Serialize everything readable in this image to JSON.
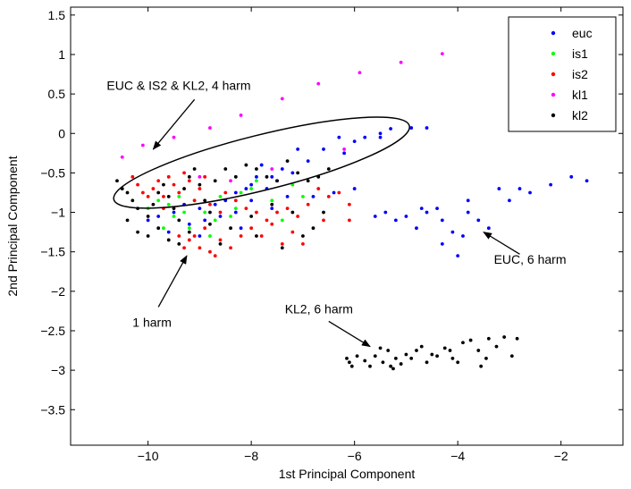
{
  "chart_data": {
    "type": "scatter",
    "title": "",
    "xlabel": "1st Principal Component",
    "ylabel": "2nd Principal Component",
    "xlim": [
      -11.5,
      -0.8
    ],
    "ylim": [
      -3.95,
      1.6
    ],
    "xticks": [
      -10,
      -8,
      -6,
      -4,
      -2
    ],
    "yticks": [
      1.5,
      1,
      0.5,
      0,
      -0.5,
      -1,
      -1.5,
      -2,
      -2.5,
      -3,
      -3.5
    ],
    "grid": false,
    "legend_position": "top-right",
    "series": [
      {
        "name": "euc",
        "color": "#0000ff",
        "points": [
          [
            -4.9,
            0.07
          ],
          [
            -4.6,
            0.07
          ],
          [
            -5.3,
            0.06
          ],
          [
            -5.5,
            0.0
          ],
          [
            -5.5,
            -0.05
          ],
          [
            -5.8,
            -0.05
          ],
          [
            -6.0,
            -0.1
          ],
          [
            -6.3,
            -0.05
          ],
          [
            -6.2,
            -0.25
          ],
          [
            -6.6,
            -0.2
          ],
          [
            -6.9,
            -0.35
          ],
          [
            -7.1,
            -0.2
          ],
          [
            -7.2,
            -0.5
          ],
          [
            -7.4,
            -0.45
          ],
          [
            -7.5,
            -0.6
          ],
          [
            -7.6,
            -0.55
          ],
          [
            -7.8,
            -0.4
          ],
          [
            -7.9,
            -0.55
          ],
          [
            -8.0,
            -0.65
          ],
          [
            -8.1,
            -0.7
          ],
          [
            -8.3,
            -0.75
          ],
          [
            -8.5,
            -0.85
          ],
          [
            -8.7,
            -0.9
          ],
          [
            -9.0,
            -0.95
          ],
          [
            -9.3,
            -0.9
          ],
          [
            -7.7,
            -0.7
          ],
          [
            -8.0,
            -0.85
          ],
          [
            -8.3,
            -1.0
          ],
          [
            -8.6,
            -1.05
          ],
          [
            -8.9,
            -1.1
          ],
          [
            -9.2,
            -1.15
          ],
          [
            -9.5,
            -1.0
          ],
          [
            -9.8,
            -1.05
          ],
          [
            -10.0,
            -1.1
          ],
          [
            -9.6,
            -1.25
          ],
          [
            -9.0,
            -1.3
          ],
          [
            -8.2,
            -1.2
          ],
          [
            -7.6,
            -0.95
          ],
          [
            -7.3,
            -0.8
          ],
          [
            -6.8,
            -0.8
          ],
          [
            -6.4,
            -0.75
          ],
          [
            -6.0,
            -0.7
          ],
          [
            -5.6,
            -1.05
          ],
          [
            -5.4,
            -1.0
          ],
          [
            -5.2,
            -1.1
          ],
          [
            -5.0,
            -1.05
          ],
          [
            -4.8,
            -1.2
          ],
          [
            -4.6,
            -1.0
          ],
          [
            -4.4,
            -0.95
          ],
          [
            -4.3,
            -1.1
          ],
          [
            -4.1,
            -1.25
          ],
          [
            -4.0,
            -1.55
          ],
          [
            -3.8,
            -0.85
          ],
          [
            -3.6,
            -1.1
          ],
          [
            -3.4,
            -1.2
          ],
          [
            -3.2,
            -0.7
          ],
          [
            -3.0,
            -0.85
          ],
          [
            -2.8,
            -0.7
          ],
          [
            -2.6,
            -0.75
          ],
          [
            -2.2,
            -0.65
          ],
          [
            -1.8,
            -0.55
          ],
          [
            -1.5,
            -0.6
          ],
          [
            -4.3,
            -1.4
          ],
          [
            -3.8,
            -1.0
          ],
          [
            -3.9,
            -1.3
          ],
          [
            -4.7,
            -0.95
          ]
        ]
      },
      {
        "name": "is1",
        "color": "#00ff00",
        "points": [
          [
            -10.0,
            -0.95
          ],
          [
            -9.8,
            -0.85
          ],
          [
            -9.6,
            -0.9
          ],
          [
            -9.5,
            -1.05
          ],
          [
            -9.3,
            -1.0
          ],
          [
            -9.2,
            -1.2
          ],
          [
            -9.1,
            -0.85
          ],
          [
            -8.9,
            -1.0
          ],
          [
            -8.7,
            -1.1
          ],
          [
            -8.6,
            -0.8
          ],
          [
            -8.4,
            -1.05
          ],
          [
            -8.2,
            -0.75
          ],
          [
            -8.0,
            -0.7
          ],
          [
            -7.9,
            -0.6
          ],
          [
            -7.6,
            -0.85
          ],
          [
            -7.4,
            -1.1
          ],
          [
            -7.2,
            -0.65
          ],
          [
            -9.7,
            -1.2
          ],
          [
            -8.8,
            -1.3
          ],
          [
            -8.3,
            -0.95
          ],
          [
            -7.0,
            -0.8
          ],
          [
            -9.4,
            -0.8
          ]
        ]
      },
      {
        "name": "is2",
        "color": "#ff0000",
        "points": [
          [
            -10.3,
            -0.55
          ],
          [
            -10.2,
            -0.65
          ],
          [
            -10.1,
            -0.75
          ],
          [
            -10.0,
            -0.8
          ],
          [
            -9.9,
            -0.7
          ],
          [
            -9.8,
            -0.6
          ],
          [
            -9.7,
            -0.8
          ],
          [
            -9.6,
            -0.55
          ],
          [
            -9.5,
            -0.65
          ],
          [
            -9.4,
            -0.75
          ],
          [
            -9.3,
            -0.5
          ],
          [
            -9.2,
            -0.6
          ],
          [
            -9.1,
            -0.85
          ],
          [
            -9.0,
            -0.7
          ],
          [
            -8.9,
            -0.55
          ],
          [
            -8.8,
            -0.9
          ],
          [
            -8.6,
            -1.0
          ],
          [
            -8.5,
            -0.75
          ],
          [
            -8.3,
            -0.85
          ],
          [
            -8.1,
            -0.95
          ],
          [
            -7.9,
            -1.0
          ],
          [
            -7.7,
            -1.1
          ],
          [
            -7.5,
            -1.0
          ],
          [
            -7.3,
            -0.95
          ],
          [
            -7.1,
            -1.05
          ],
          [
            -6.9,
            -0.9
          ],
          [
            -6.7,
            -0.7
          ],
          [
            -6.5,
            -0.8
          ],
          [
            -6.3,
            -0.75
          ],
          [
            -6.1,
            -1.1
          ],
          [
            -9.4,
            -1.3
          ],
          [
            -9.3,
            -1.45
          ],
          [
            -9.2,
            -1.35
          ],
          [
            -9.0,
            -1.45
          ],
          [
            -8.8,
            -1.5
          ],
          [
            -8.6,
            -1.35
          ],
          [
            -8.4,
            -1.45
          ],
          [
            -8.2,
            -1.3
          ],
          [
            -8.0,
            -1.2
          ],
          [
            -7.8,
            -1.3
          ],
          [
            -7.6,
            -1.15
          ],
          [
            -7.4,
            -1.4
          ],
          [
            -7.2,
            -1.25
          ],
          [
            -8.9,
            -1.2
          ],
          [
            -9.7,
            -0.95
          ],
          [
            -6.1,
            -0.9
          ],
          [
            -6.6,
            -1.1
          ],
          [
            -7.0,
            -1.4
          ],
          [
            -8.7,
            -1.55
          ],
          [
            -9.1,
            -1.3
          ]
        ]
      },
      {
        "name": "kl1",
        "color": "#ff00ff",
        "points": [
          [
            -4.3,
            1.01
          ],
          [
            -5.1,
            0.9
          ],
          [
            -5.9,
            0.77
          ],
          [
            -6.7,
            0.63
          ],
          [
            -7.4,
            0.44
          ],
          [
            -8.2,
            0.23
          ],
          [
            -8.8,
            0.07
          ],
          [
            -9.5,
            -0.05
          ],
          [
            -10.1,
            -0.15
          ],
          [
            -10.5,
            -0.3
          ],
          [
            -6.2,
            -0.2
          ],
          [
            -7.6,
            -0.45
          ],
          [
            -8.4,
            -0.6
          ],
          [
            -9.0,
            -0.55
          ]
        ]
      },
      {
        "name": "kl2",
        "color": "#000000",
        "points": [
          [
            -10.6,
            -0.6
          ],
          [
            -10.5,
            -0.7
          ],
          [
            -10.4,
            -0.75
          ],
          [
            -10.3,
            -0.85
          ],
          [
            -10.2,
            -0.95
          ],
          [
            -10.0,
            -1.05
          ],
          [
            -9.9,
            -0.9
          ],
          [
            -9.8,
            -0.75
          ],
          [
            -9.7,
            -0.65
          ],
          [
            -9.6,
            -0.8
          ],
          [
            -9.5,
            -0.95
          ],
          [
            -9.4,
            -1.1
          ],
          [
            -9.3,
            -0.7
          ],
          [
            -9.2,
            -0.55
          ],
          [
            -9.1,
            -0.45
          ],
          [
            -9.0,
            -0.65
          ],
          [
            -8.9,
            -0.85
          ],
          [
            -8.8,
            -1.0
          ],
          [
            -8.7,
            -0.6
          ],
          [
            -8.5,
            -0.45
          ],
          [
            -8.3,
            -0.55
          ],
          [
            -8.1,
            -0.4
          ],
          [
            -7.9,
            -0.45
          ],
          [
            -7.7,
            -0.55
          ],
          [
            -7.5,
            -0.6
          ],
          [
            -7.3,
            -0.35
          ],
          [
            -7.1,
            -0.5
          ],
          [
            -6.9,
            -0.6
          ],
          [
            -6.7,
            -0.55
          ],
          [
            -6.5,
            -0.45
          ],
          [
            -10.4,
            -1.1
          ],
          [
            -10.2,
            -1.25
          ],
          [
            -10.0,
            -1.3
          ],
          [
            -9.8,
            -1.2
          ],
          [
            -9.6,
            -1.35
          ],
          [
            -9.4,
            -1.4
          ],
          [
            -9.2,
            -1.25
          ],
          [
            -8.8,
            -1.15
          ],
          [
            -8.4,
            -1.2
          ],
          [
            -8.0,
            -1.05
          ],
          [
            -7.6,
            -0.9
          ],
          [
            -7.2,
            -1.0
          ],
          [
            -7.0,
            -1.3
          ],
          [
            -6.8,
            -1.2
          ],
          [
            -6.6,
            -1.0
          ],
          [
            -7.4,
            -1.45
          ],
          [
            -7.9,
            -1.3
          ],
          [
            -8.6,
            -1.4
          ],
          [
            -6.15,
            -2.85
          ],
          [
            -6.1,
            -2.9
          ],
          [
            -5.95,
            -2.82
          ],
          [
            -5.8,
            -2.88
          ],
          [
            -5.7,
            -2.95
          ],
          [
            -5.6,
            -2.82
          ],
          [
            -5.5,
            -2.72
          ],
          [
            -5.45,
            -2.9
          ],
          [
            -5.35,
            -2.75
          ],
          [
            -5.3,
            -2.95
          ],
          [
            -5.2,
            -2.85
          ],
          [
            -5.1,
            -2.92
          ],
          [
            -5.0,
            -2.8
          ],
          [
            -4.9,
            -2.85
          ],
          [
            -4.8,
            -2.75
          ],
          [
            -4.7,
            -2.7
          ],
          [
            -4.6,
            -2.9
          ],
          [
            -4.5,
            -2.8
          ],
          [
            -4.4,
            -2.82
          ],
          [
            -4.25,
            -2.72
          ],
          [
            -4.15,
            -2.75
          ],
          [
            -4.1,
            -2.85
          ],
          [
            -4.0,
            -2.9
          ],
          [
            -3.9,
            -2.65
          ],
          [
            -3.75,
            -2.62
          ],
          [
            -3.6,
            -2.75
          ],
          [
            -3.45,
            -2.85
          ],
          [
            -3.4,
            -2.6
          ],
          [
            -3.25,
            -2.7
          ],
          [
            -3.1,
            -2.58
          ],
          [
            -2.95,
            -2.82
          ],
          [
            -2.85,
            -2.6
          ],
          [
            -6.05,
            -2.95
          ],
          [
            -5.25,
            -2.98
          ],
          [
            -3.55,
            -2.95
          ]
        ]
      }
    ],
    "ellipse": {
      "center": [
        -7.8,
        -0.37
      ],
      "rx": 2.95,
      "ry": 0.35,
      "angle_deg": 14
    },
    "annotations": [
      {
        "text": "EUC & IS2 & KL2, 4 harm",
        "text_xy": [
          -10.8,
          0.55
        ],
        "arrow_from": [
          -9.1,
          0.43
        ],
        "arrow_to": [
          -9.9,
          -0.2
        ]
      },
      {
        "text": "EUC, 6 harm",
        "text_xy": [
          -3.3,
          -1.65
        ],
        "arrow_from": [
          -2.8,
          -1.53
        ],
        "arrow_to": [
          -3.5,
          -1.25
        ]
      },
      {
        "text": "KL2, 6 harm",
        "text_xy": [
          -7.35,
          -2.28
        ],
        "arrow_from": [
          -6.5,
          -2.38
        ],
        "arrow_to": [
          -5.7,
          -2.7
        ]
      },
      {
        "text": "1 harm",
        "text_xy": [
          -10.3,
          -2.45
        ],
        "arrow_from": [
          -9.8,
          -2.2
        ],
        "arrow_to": [
          -9.25,
          -1.55
        ]
      }
    ]
  }
}
